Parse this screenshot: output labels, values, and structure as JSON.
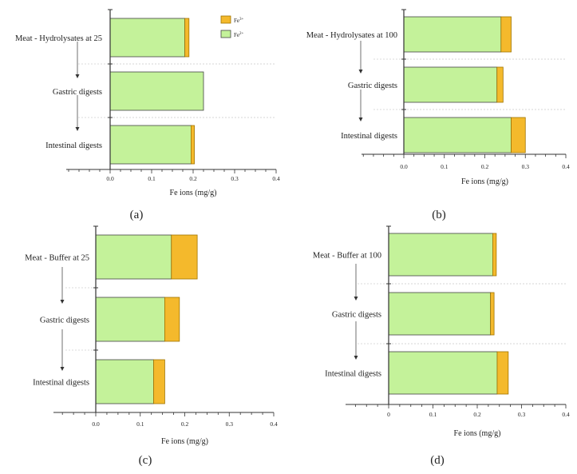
{
  "colors": {
    "fe3": "#F4B92C",
    "fe2": "#C4F29A",
    "fe3_stroke": "#a07400",
    "fe2_stroke": "#444444"
  },
  "legend": {
    "fe3": "Fe",
    "fe3_sup": "3+",
    "fe2": "Fe",
    "fe2_sup": "2+"
  },
  "chart_data": [
    {
      "type": "bar",
      "orientation": "horizontal",
      "stacked": true,
      "panel": "(a)",
      "categories": [
        "Meat - Hydrolysates at 25",
        "Gastric digests",
        "Intestinal digests"
      ],
      "series": [
        {
          "name": "Fe2+",
          "values": [
            0.18,
            0.225,
            0.195
          ]
        },
        {
          "name": "Fe3+",
          "values": [
            0.01,
            0.0,
            0.008
          ]
        }
      ],
      "xlabel": "Fe ions (mg/g)",
      "xlim": [
        0,
        0.4
      ],
      "ticks": [
        "0.0",
        "0.1",
        "0.2",
        "0.3",
        "0.4"
      ],
      "legend": "top-right"
    },
    {
      "type": "bar",
      "orientation": "horizontal",
      "stacked": true,
      "panel": "(b)",
      "categories": [
        "Meat - Hydrolysates at 100",
        "Gastric digests",
        "Intestinal digests"
      ],
      "series": [
        {
          "name": "Fe2+",
          "values": [
            0.24,
            0.23,
            0.265
          ]
        },
        {
          "name": "Fe3+",
          "values": [
            0.025,
            0.015,
            0.035
          ]
        }
      ],
      "xlabel": "Fe ions (mg/g)",
      "xlim": [
        0,
        0.4
      ],
      "ticks": [
        "0.0",
        "0.1",
        "0.2",
        "0.3",
        "0.4"
      ]
    },
    {
      "type": "bar",
      "orientation": "horizontal",
      "stacked": true,
      "panel": "(c)",
      "categories": [
        "Meat - Buffer at 25",
        "Gastric digests",
        "Intestinal digests"
      ],
      "series": [
        {
          "name": "Fe2+",
          "values": [
            0.17,
            0.155,
            0.13
          ]
        },
        {
          "name": "Fe3+",
          "values": [
            0.058,
            0.033,
            0.025
          ]
        }
      ],
      "xlabel": "Fe ions (mg/g)",
      "xlim": [
        0,
        0.4
      ],
      "ticks": [
        "0.0",
        "0.1",
        "0.2",
        "0.3",
        "0.4"
      ]
    },
    {
      "type": "bar",
      "orientation": "horizontal",
      "stacked": true,
      "panel": "(d)",
      "categories": [
        "Meat - Buffer at 100",
        "Gastric digests",
        "Intestinal digests"
      ],
      "series": [
        {
          "name": "Fe2+",
          "values": [
            0.235,
            0.23,
            0.245
          ]
        },
        {
          "name": "Fe3+",
          "values": [
            0.008,
            0.008,
            0.025
          ]
        }
      ],
      "xlabel": "Fe ions (mg/g)",
      "xlim": [
        0,
        0.4
      ],
      "ticks": [
        "0",
        "0.1",
        "0.2",
        "0.3",
        "0.4"
      ]
    }
  ]
}
